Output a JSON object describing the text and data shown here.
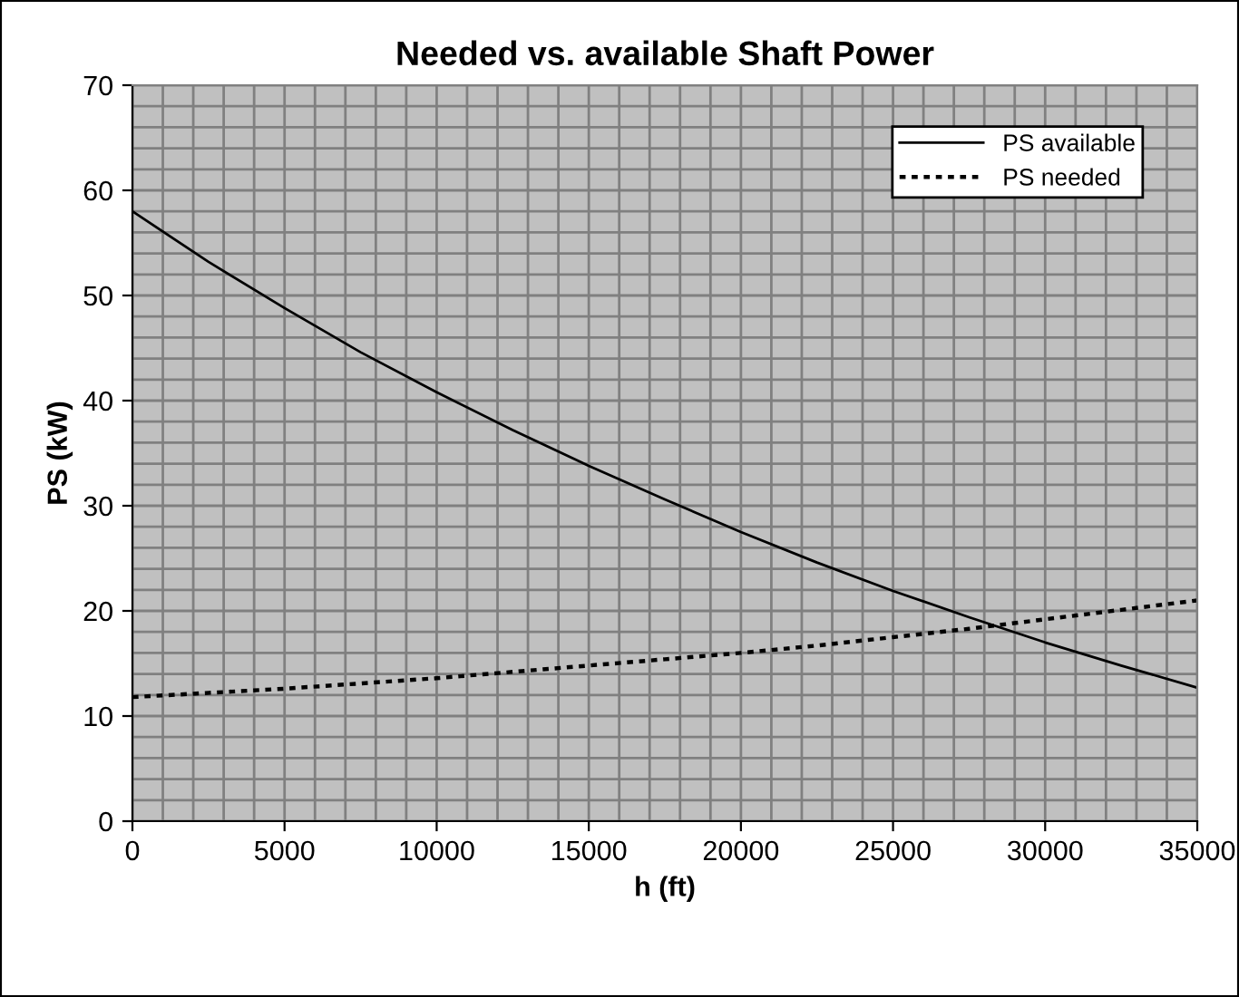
{
  "chart_data": {
    "type": "line",
    "title": "Needed vs. available Shaft Power",
    "xlabel": "h (ft)",
    "ylabel": "PS (kW)",
    "x": [
      0,
      2500,
      5000,
      7500,
      10000,
      12500,
      15000,
      17500,
      20000,
      22500,
      25000,
      27500,
      30000,
      32500,
      35000
    ],
    "series": [
      {
        "name": "PS available",
        "color": "#000000",
        "line_style": "solid",
        "values": [
          58.0,
          53.2,
          48.8,
          44.6,
          40.8,
          37.2,
          33.8,
          30.6,
          27.5,
          24.6,
          21.9,
          19.4,
          17.0,
          14.8,
          12.7
        ]
      },
      {
        "name": "PS needed",
        "color": "#000000",
        "line_style": "dotted",
        "values": [
          11.8,
          12.2,
          12.6,
          13.1,
          13.6,
          14.2,
          14.8,
          15.4,
          16.0,
          16.7,
          17.5,
          18.3,
          19.2,
          20.1,
          21.0
        ]
      }
    ],
    "xlim": [
      0,
      35000
    ],
    "ylim": [
      0,
      70
    ],
    "xticks": [
      0,
      {
        "value": 1000,
        "label": null
      },
      {
        "value": 2000,
        "label": null
      },
      {
        "value": 3000,
        "label": null
      },
      {
        "value": 4000,
        "label": null
      },
      5000,
      {
        "value": 6000,
        "label": null
      },
      {
        "value": 7000,
        "label": null
      },
      {
        "value": 8000,
        "label": null
      },
      {
        "value": 9000,
        "label": null
      },
      10000,
      {
        "value": 11000,
        "label": null
      },
      {
        "value": 12000,
        "label": null
      },
      {
        "value": 13000,
        "label": null
      },
      {
        "value": 14000,
        "label": null
      },
      15000,
      {
        "value": 16000,
        "label": null
      },
      {
        "value": 17000,
        "label": null
      },
      {
        "value": 18000,
        "label": null
      },
      {
        "value": 19000,
        "label": null
      },
      20000,
      {
        "value": 21000,
        "label": null
      },
      {
        "value": 22000,
        "label": null
      },
      {
        "value": 23000,
        "label": null
      },
      {
        "value": 24000,
        "label": null
      },
      25000,
      {
        "value": 26000,
        "label": null
      },
      {
        "value": 27000,
        "label": null
      },
      {
        "value": 28000,
        "label": null
      },
      {
        "value": 29000,
        "label": null
      },
      30000,
      {
        "value": 31000,
        "label": null
      },
      {
        "value": 32000,
        "label": null
      },
      {
        "value": 33000,
        "label": null
      },
      {
        "value": 34000,
        "label": null
      },
      35000
    ],
    "yticks": [
      0,
      {
        "value": 2,
        "label": null
      },
      {
        "value": 4,
        "label": null
      },
      {
        "value": 6,
        "label": null
      },
      {
        "value": 8,
        "label": null
      },
      10,
      {
        "value": 12,
        "label": null
      },
      {
        "value": 14,
        "label": null
      },
      {
        "value": 16,
        "label": null
      },
      {
        "value": 18,
        "label": null
      },
      20,
      {
        "value": 22,
        "label": null
      },
      {
        "value": 24,
        "label": null
      },
      {
        "value": 26,
        "label": null
      },
      {
        "value": 28,
        "label": null
      },
      30,
      {
        "value": 32,
        "label": null
      },
      {
        "value": 34,
        "label": null
      },
      {
        "value": 36,
        "label": null
      },
      {
        "value": 38,
        "label": null
      },
      40,
      {
        "value": 42,
        "label": null
      },
      {
        "value": 44,
        "label": null
      },
      {
        "value": 46,
        "label": null
      },
      {
        "value": 48,
        "label": null
      },
      50,
      {
        "value": 52,
        "label": null
      },
      {
        "value": 54,
        "label": null
      },
      {
        "value": 56,
        "label": null
      },
      {
        "value": 58,
        "label": null
      },
      60,
      {
        "value": 62,
        "label": null
      },
      {
        "value": 64,
        "label": null
      },
      {
        "value": 66,
        "label": null
      },
      {
        "value": 68,
        "label": null
      },
      70
    ],
    "grid": true,
    "legend": "top right"
  }
}
